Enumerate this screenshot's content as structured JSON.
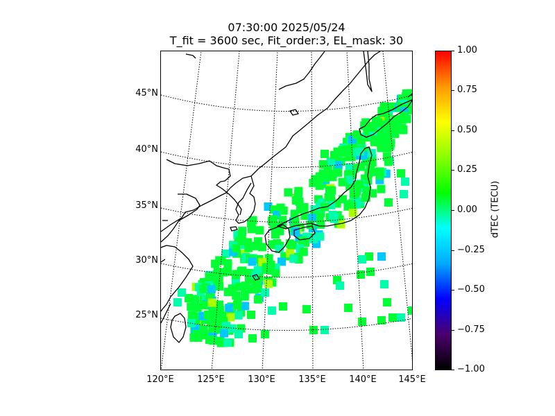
{
  "title": {
    "line1": "07:30:00 2025/05/24",
    "line2": "T_fit = 3600 sec, Fit_order:3, EL_mask: 30"
  },
  "map": {
    "latitude_labels": [
      "45°N",
      "40°N",
      "35°N",
      "30°N",
      "25°N"
    ],
    "longitude_labels": [
      "120°E",
      "125°E",
      "130°E",
      "135°E",
      "140°E",
      "145°E"
    ],
    "extent": {
      "lon_min": 120,
      "lon_max": 145,
      "lat_min": 20,
      "lat_max": 49
    },
    "gridlines": "dotted",
    "data_field_description_colors": {
      "dominant": "#00ff33",
      "secondary": "#00ffaa",
      "negative_spots": "#00c8ff",
      "positive_spots": "#aaff00"
    }
  },
  "colorbar": {
    "label": "dTEC (TECU)",
    "ticks": [
      "1.00",
      "0.75",
      "0.50",
      "0.25",
      "0.00",
      "−0.25",
      "−0.50",
      "−0.75",
      "−1.00"
    ],
    "range": [
      -1.0,
      1.0
    ],
    "colormap": [
      "#000000",
      "#4b006e",
      "#0000ff",
      "#00aaff",
      "#00ffff",
      "#00ff00",
      "#88ff00",
      "#ffff00",
      "#ff9900",
      "#ff0000"
    ]
  }
}
